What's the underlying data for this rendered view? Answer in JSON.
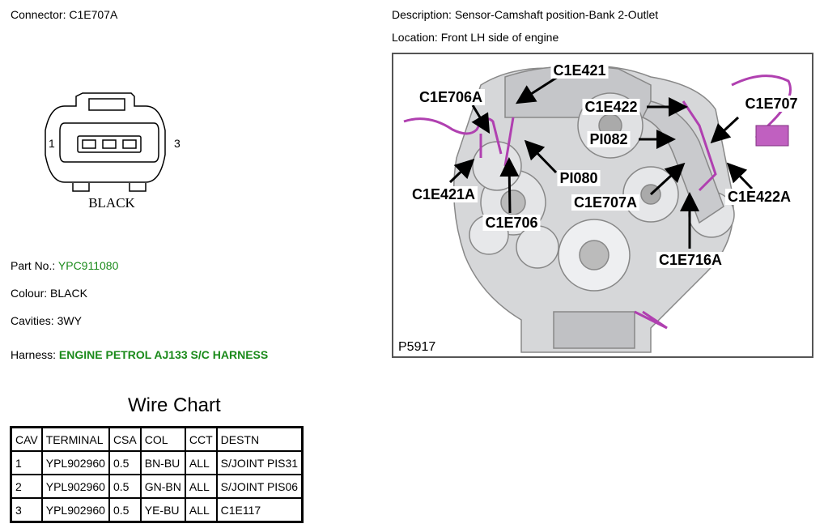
{
  "header": {
    "connector": {
      "label": "Connector:",
      "value": "C1E707A"
    },
    "description": {
      "label": "Description:",
      "value": "Sensor-Camshaft position-Bank 2-Outlet"
    },
    "location": {
      "label": "Location:",
      "value": "Front LH side of engine"
    }
  },
  "connector_view": {
    "pin_left": "1",
    "pin_right": "3",
    "colour_label": "BLACK"
  },
  "details": [
    {
      "label": "Part No.:",
      "value": "YPC911080"
    },
    {
      "label": "Colour:",
      "value": "BLACK"
    },
    {
      "label": "Cavities:",
      "value": "3WY"
    },
    {
      "label": "Harness:",
      "value": "ENGINE PETROL AJ133 S/C HARNESS"
    }
  ],
  "figure": {
    "id": "P5917",
    "callouts": [
      "C1E421",
      "C1E706A",
      "C1E422",
      "C1E707",
      "PI082",
      "PI080",
      "C1E421A",
      "C1E707A",
      "C1E422A",
      "C1E706",
      "C1E716A"
    ]
  },
  "wire_chart": {
    "title": "Wire Chart",
    "columns": [
      "CAV",
      "TERMINAL",
      "CSA",
      "COL",
      "CCT",
      "DESTN"
    ],
    "rows": [
      [
        "1",
        "YPL902960",
        "0.5",
        "BN-BU",
        "ALL",
        "S/JOINT PIS31"
      ],
      [
        "2",
        "YPL902960",
        "0.5",
        "GN-BN",
        "ALL",
        "S/JOINT PIS06"
      ],
      [
        "3",
        "YPL902960",
        "0.5",
        "YE-BU",
        "ALL",
        "C1E117"
      ]
    ]
  }
}
